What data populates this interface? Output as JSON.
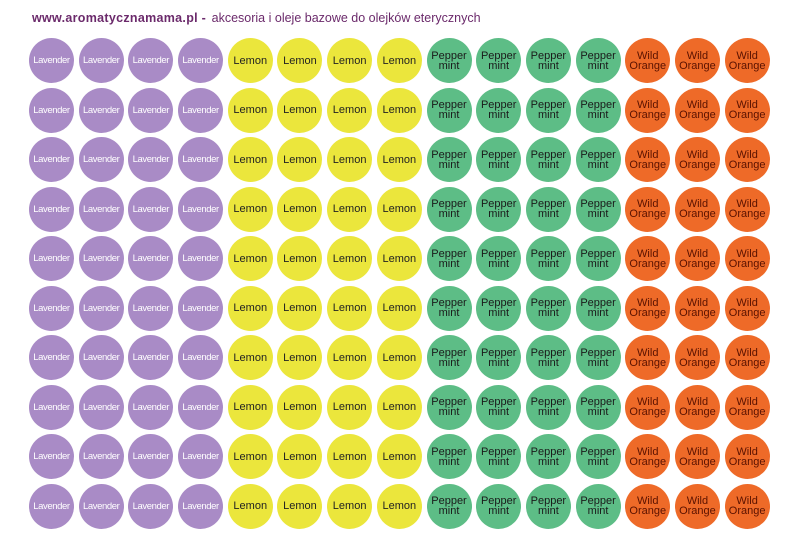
{
  "header": {
    "site": "www.aromatycznamama.pl -",
    "subtitle": "akcesoria i oleje bazowe do olejków eterycznych"
  },
  "rows": 10,
  "groups": [
    {
      "key": "lavender",
      "lines": [
        "Lavender"
      ],
      "count": 4,
      "color": "#a98bc6"
    },
    {
      "key": "lemon",
      "lines": [
        "Lemon"
      ],
      "count": 4,
      "color": "#ebe63c"
    },
    {
      "key": "peppermint",
      "lines": [
        "Pepper",
        "mint"
      ],
      "count": 4,
      "color": "#5dbd86"
    },
    {
      "key": "wildorange",
      "lines": [
        "Wild",
        "Orange"
      ],
      "count": 3,
      "color": "#ee6a28"
    }
  ]
}
